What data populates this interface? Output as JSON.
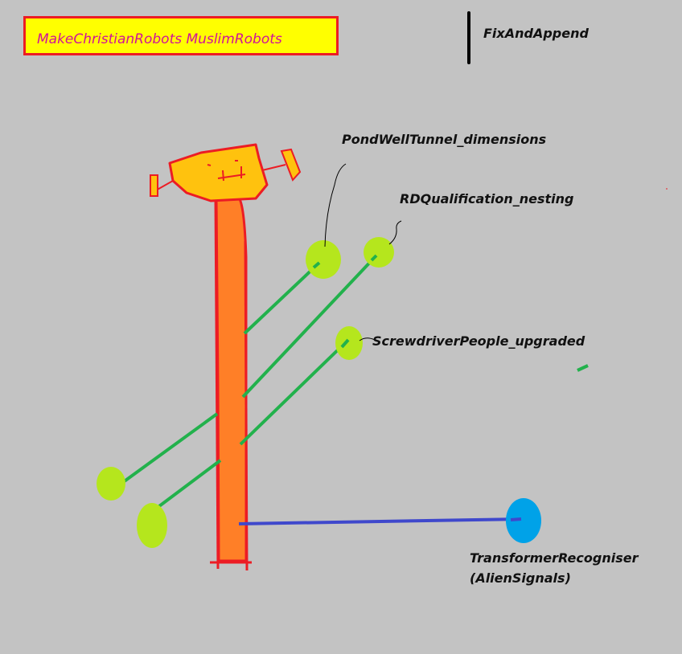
{
  "title": "MakeChristianRobots MuslimRobots",
  "side_note": "FixAndAppend",
  "labels": {
    "pond": "PondWellTunnel_dimensions",
    "rd": "RDQualification_nesting",
    "screwdriver": "ScrewdriverPeople_upgraded",
    "transformer_line1": "TransformerRecogniser",
    "transformer_line2": "(AlienSignals)"
  },
  "colors": {
    "background": "#c3c3c3",
    "title_fill": "#ffff00",
    "title_border": "#ec1c24",
    "title_text": "#d0139a",
    "pole_fill": "#ff7f27",
    "pole_outline": "#ec1c24",
    "head_fill": "#ffc20e",
    "branch": "#22b14c",
    "node": "#b5e61d",
    "blue_line": "#3f48cc",
    "blue_node": "#00a2e8"
  }
}
